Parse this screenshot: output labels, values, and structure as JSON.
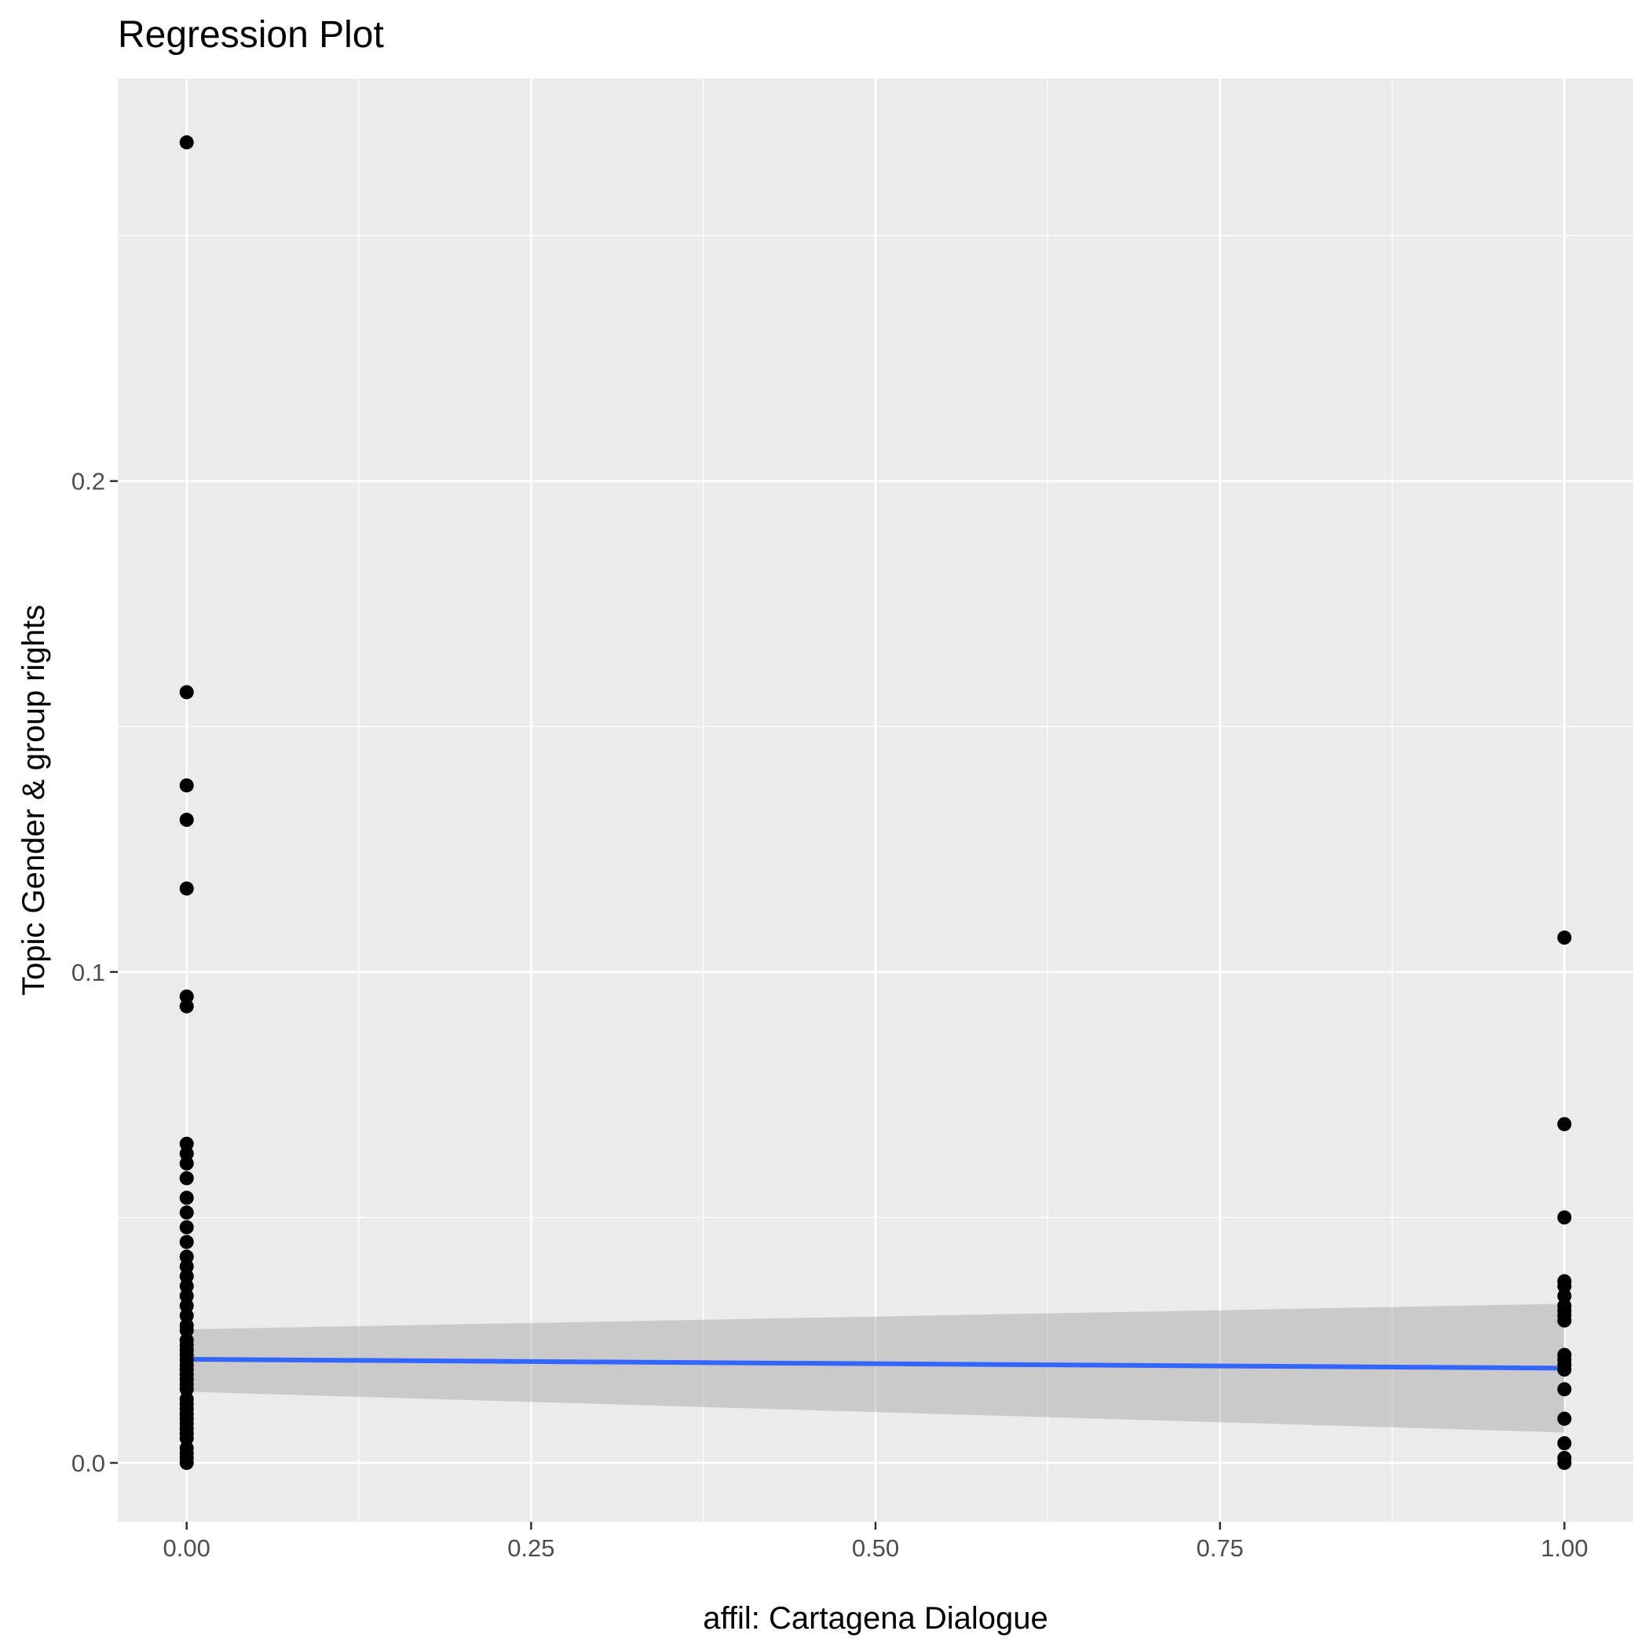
{
  "chart_data": {
    "type": "scatter",
    "title": "Regression Plot",
    "xlabel": "affil: Cartagena Dialogue",
    "ylabel": "Topic Gender & group rights",
    "xlim": [
      -0.05,
      1.05
    ],
    "ylim": [
      -0.012,
      0.282
    ],
    "x_ticks": [
      0.0,
      0.25,
      0.5,
      0.75,
      1.0
    ],
    "x_tick_labels": [
      "0.00",
      "0.25",
      "0.50",
      "0.75",
      "1.00"
    ],
    "y_ticks": [
      0.0,
      0.1,
      0.2
    ],
    "y_tick_labels": [
      "0.0",
      "0.1",
      "0.2"
    ],
    "x_minor_ticks": [
      0.125,
      0.375,
      0.625,
      0.875
    ],
    "y_minor_ticks": [
      0.05,
      0.15,
      0.25
    ],
    "grid": true,
    "legend": "none",
    "points": {
      "x0_y": [
        0.269,
        0.157,
        0.138,
        0.131,
        0.117,
        0.095,
        0.093,
        0.065,
        0.063,
        0.061,
        0.058,
        0.054,
        0.051,
        0.048,
        0.045,
        0.042,
        0.04,
        0.038,
        0.036,
        0.034,
        0.032,
        0.03,
        0.028,
        0.027,
        0.025,
        0.024,
        0.023,
        0.022,
        0.021,
        0.02,
        0.019,
        0.018,
        0.017,
        0.016,
        0.015,
        0.013,
        0.012,
        0.011,
        0.01,
        0.009,
        0.008,
        0.007,
        0.006,
        0.005,
        0.003,
        0.002,
        0.001,
        0.0
      ],
      "x1_y": [
        0.107,
        0.069,
        0.05,
        0.037,
        0.036,
        0.034,
        0.032,
        0.031,
        0.03,
        0.029,
        0.022,
        0.021,
        0.02,
        0.019,
        0.015,
        0.009,
        0.004,
        0.001,
        0.0
      ]
    },
    "regression": {
      "x": [
        0.0,
        1.0
      ],
      "y": [
        0.0211,
        0.0193
      ],
      "ci_lower": [
        0.0145,
        0.0062
      ],
      "ci_upper": [
        0.0272,
        0.0324
      ]
    },
    "colors": {
      "panel": "#ebebeb",
      "grid": "#ffffff",
      "points": "#000000",
      "line": "#3366ff",
      "ribbon": "#999999",
      "ticks": "#333333"
    }
  }
}
